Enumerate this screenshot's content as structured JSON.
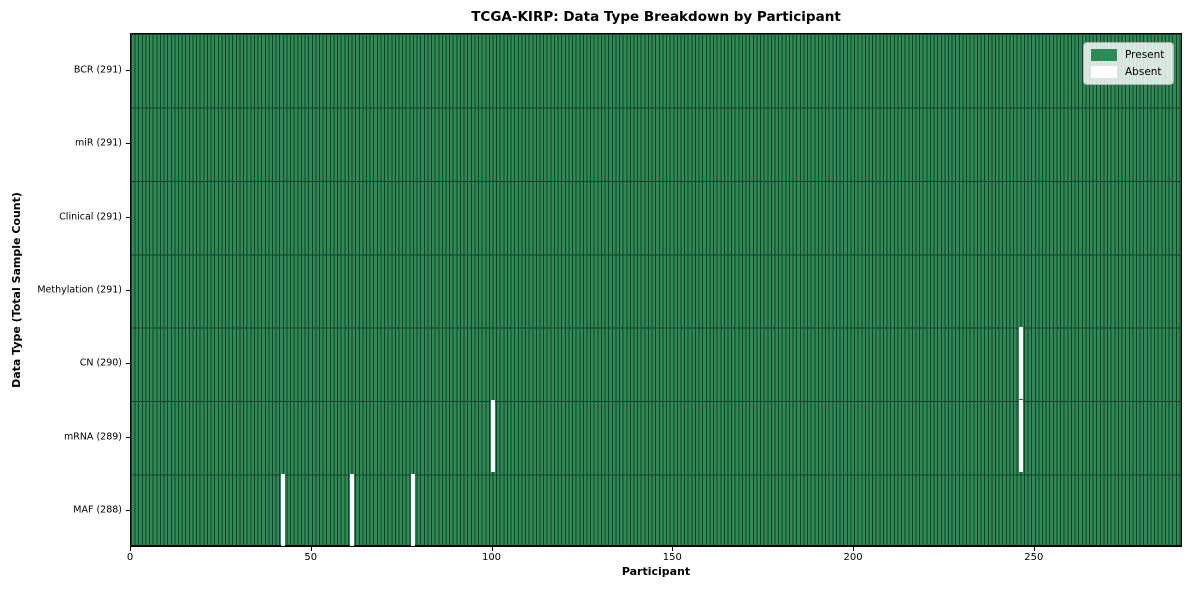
{
  "chart_data": {
    "type": "heatmap",
    "title": "TCGA-KIRP: Data Type Breakdown by Participant",
    "xlabel": "Participant",
    "ylabel": "Data Type (Total Sample Count)",
    "n_participants": 291,
    "x_ticks": [
      0,
      50,
      100,
      150,
      200,
      250
    ],
    "x_range": [
      0,
      291
    ],
    "grid": "cell-edges",
    "legend_position": "upper right",
    "legend": [
      {
        "label": "Present",
        "color": "#2e8b57"
      },
      {
        "label": "Absent",
        "color": "#ffffff"
      }
    ],
    "rows": [
      {
        "label": "BCR (291)",
        "data_type": "BCR",
        "present_count": 291,
        "absent_participants": []
      },
      {
        "label": "miR (291)",
        "data_type": "miR",
        "present_count": 291,
        "absent_participants": []
      },
      {
        "label": "Clinical (291)",
        "data_type": "Clinical",
        "present_count": 291,
        "absent_participants": []
      },
      {
        "label": "Methylation (291)",
        "data_type": "Methylation",
        "present_count": 291,
        "absent_participants": []
      },
      {
        "label": "CN (290)",
        "data_type": "CN",
        "present_count": 290,
        "absent_participants": [
          246
        ]
      },
      {
        "label": "mRNA (289)",
        "data_type": "mRNA",
        "present_count": 289,
        "absent_participants": [
          100,
          246
        ]
      },
      {
        "label": "MAF (288)",
        "data_type": "MAF",
        "present_count": 288,
        "absent_participants": [
          42,
          61,
          78
        ]
      }
    ],
    "colors": {
      "present": "#2e8b57",
      "absent": "#ffffff",
      "cell_edge": "#16402a",
      "spine": "#000000"
    }
  }
}
